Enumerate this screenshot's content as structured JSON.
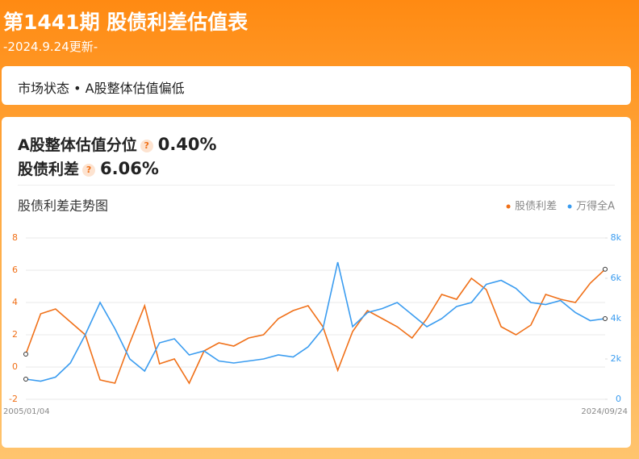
{
  "header": {
    "title": "第1441期 股债利差估值表",
    "date": "-2024.9.24更新-"
  },
  "status": {
    "label": "市场状态",
    "value": "A股整体估值偏低"
  },
  "metrics": [
    {
      "label": "A股整体估值分位",
      "value": "0.40%"
    },
    {
      "label": "股债利差",
      "value": "6.06%"
    }
  ],
  "chart_data": {
    "type": "line",
    "title": "股债利差走势图",
    "categories": [
      "2005/01/04",
      null,
      null,
      null,
      null,
      null,
      null,
      null,
      null,
      null,
      null,
      null,
      null,
      null,
      null,
      null,
      null,
      null,
      null,
      null,
      null,
      null,
      null,
      null,
      null,
      null,
      null,
      null,
      null,
      null,
      null,
      null,
      null,
      null,
      null,
      null,
      null,
      null,
      null,
      "2024/09/24"
    ],
    "series": [
      {
        "name": "股债利差",
        "color": "#f07018",
        "axis": "y",
        "values": [
          0.8,
          3.3,
          3.6,
          2.8,
          2.0,
          -0.8,
          -1.0,
          1.5,
          3.8,
          0.2,
          0.5,
          -1.0,
          1.0,
          1.5,
          1.3,
          1.8,
          2.0,
          3.0,
          3.5,
          3.8,
          2.5,
          -0.2,
          2.2,
          3.5,
          3.0,
          2.5,
          1.8,
          3.0,
          4.5,
          4.2,
          5.5,
          4.8,
          2.5,
          2.0,
          2.6,
          4.5,
          4.2,
          4.0,
          5.2,
          6.06
        ]
      },
      {
        "name": "万得全A",
        "color": "#3a9cf0",
        "axis": "y2",
        "values": [
          1000,
          900,
          1100,
          1800,
          3200,
          4800,
          3500,
          2000,
          1400,
          2800,
          3000,
          2200,
          2400,
          1900,
          1800,
          1900,
          2000,
          2200,
          2100,
          2600,
          3500,
          6800,
          3600,
          4300,
          4500,
          4800,
          4200,
          3600,
          4000,
          4600,
          4800,
          5700,
          5900,
          5500,
          4800,
          4700,
          4900,
          4300,
          3900,
          4000
        ]
      }
    ],
    "ylim": [
      -2,
      8
    ],
    "yticks": [
      -2,
      0,
      2,
      4,
      6,
      8
    ],
    "y2lim": [
      0,
      8000
    ],
    "y2ticks": [
      0,
      {
        "value": 2000,
        "label": "2k"
      },
      {
        "value": 4000,
        "label": "4k"
      },
      {
        "value": 6000,
        "label": "6k"
      },
      {
        "value": 8000,
        "label": "8k"
      }
    ],
    "grid": true,
    "legend": "top-right"
  }
}
